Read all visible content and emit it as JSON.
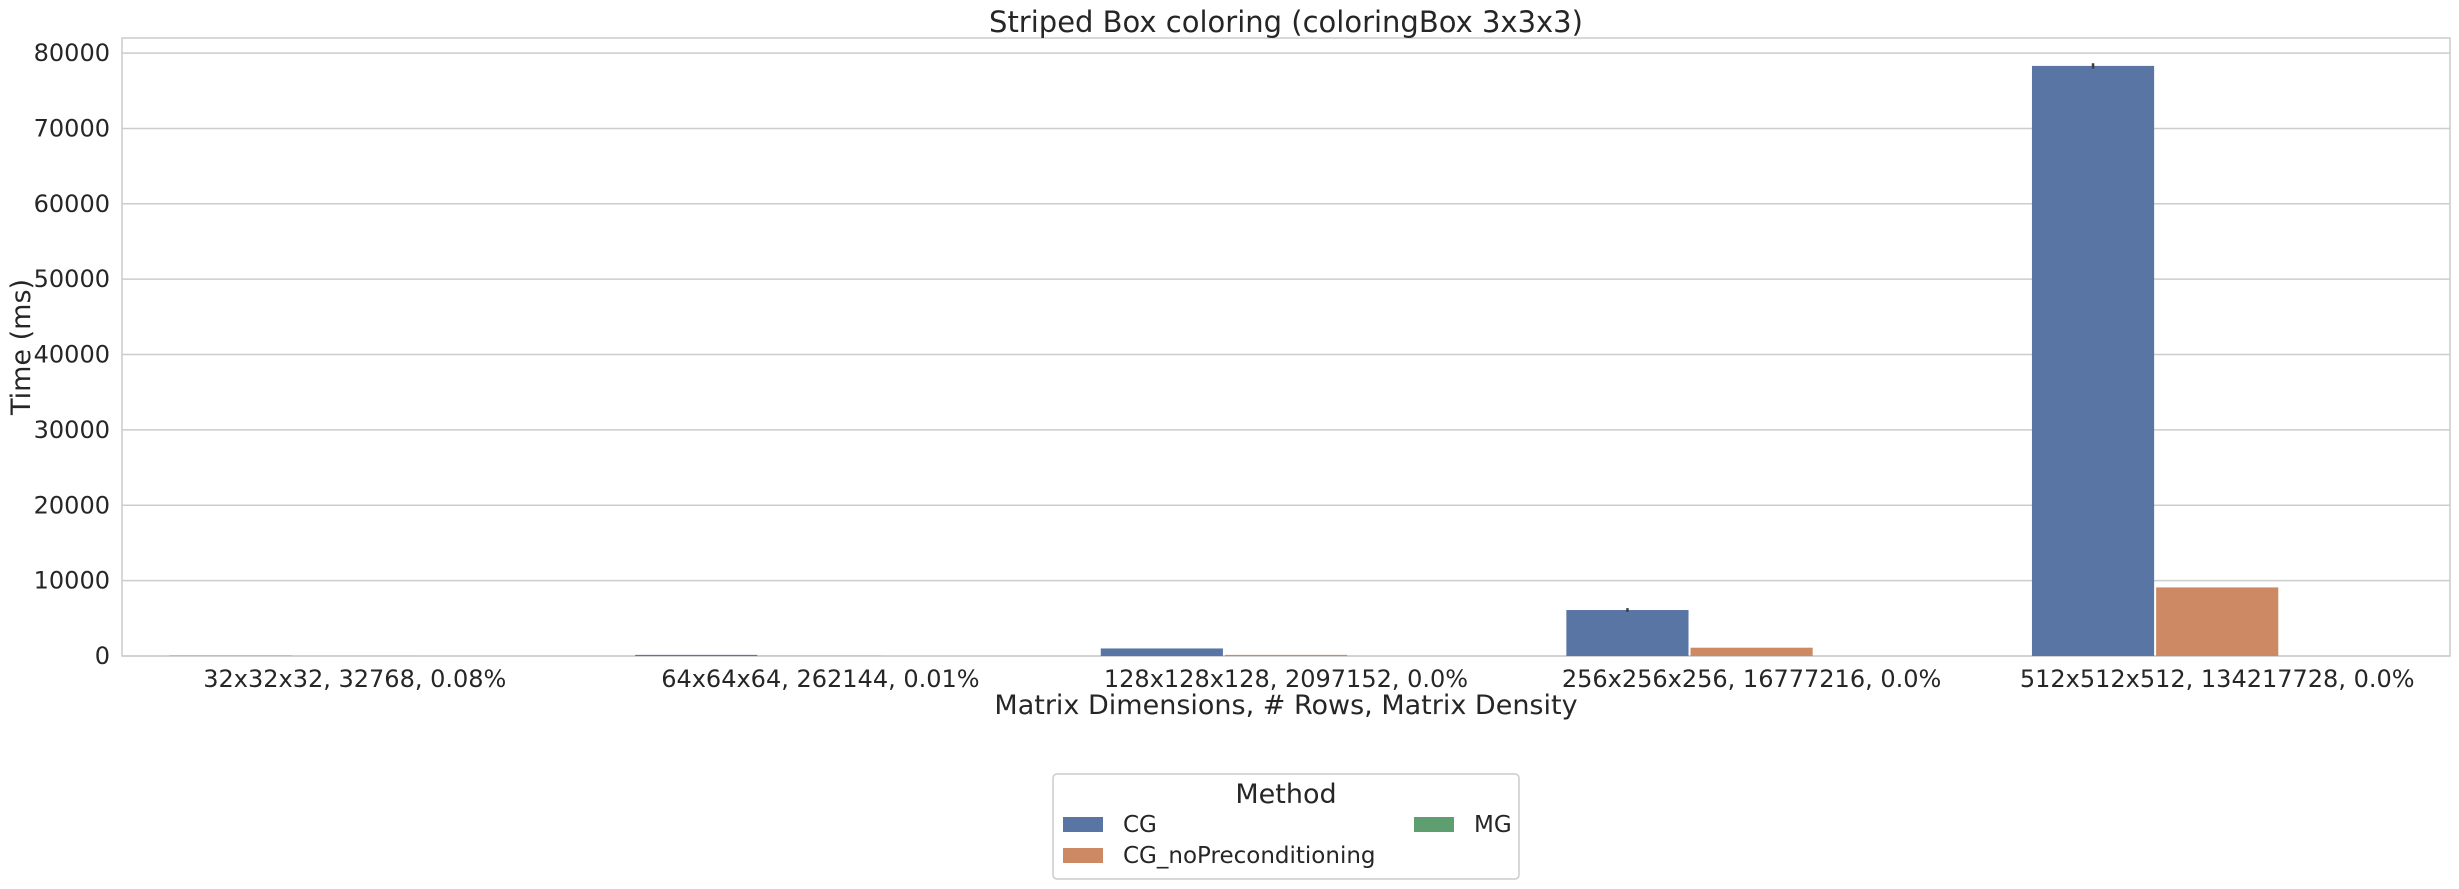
{
  "chart_data": {
    "type": "bar",
    "title": "Striped Box coloring (coloringBox 3x3x3)",
    "xlabel": "Matrix Dimensions, # Rows, Matrix Density",
    "ylabel": "Time (ms)",
    "ylim": [
      0,
      82000
    ],
    "yticks": [
      0,
      10000,
      20000,
      30000,
      40000,
      50000,
      60000,
      70000,
      80000
    ],
    "grid": true,
    "legend_position": "bottom-center",
    "legend_title": "Method",
    "categories": [
      "32x32x32, 32768, 0.08%",
      "64x64x64, 262144, 0.01%",
      "128x128x128, 2097152, 0.0%",
      "256x256x256, 16777216, 0.0%",
      "512x512x512, 134217728, 0.0%"
    ],
    "series": [
      {
        "name": "CG",
        "color": "#5875a4",
        "values": [
          30,
          150,
          1000,
          6100,
          78300
        ],
        "error": [
          0,
          0,
          0,
          250,
          350
        ]
      },
      {
        "name": "CG_noPreconditioning",
        "color": "#cc8963",
        "values": [
          5,
          20,
          150,
          1100,
          9100
        ],
        "error": [
          0,
          0,
          0,
          0,
          0
        ]
      },
      {
        "name": "MG",
        "color": "#5f9e6e",
        "values": [
          0,
          0,
          0,
          0,
          0
        ],
        "error": [
          0,
          0,
          0,
          0,
          0
        ]
      }
    ]
  }
}
